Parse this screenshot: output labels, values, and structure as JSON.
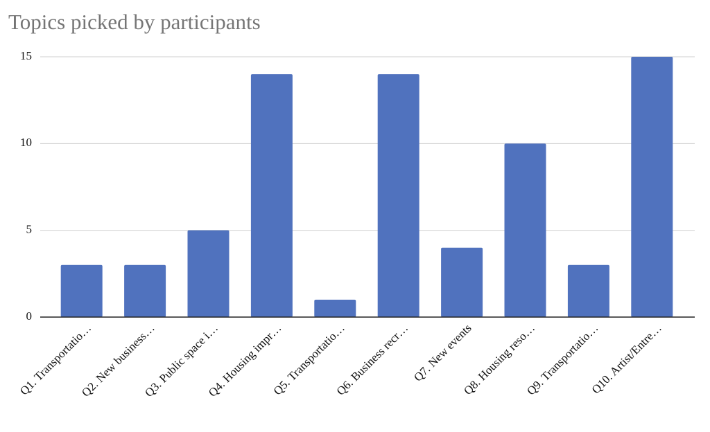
{
  "chart_data": {
    "type": "bar",
    "title": "Topics picked by participants",
    "categories": [
      "Q1. Transportatio…",
      "Q2. New business…",
      "Q3. Public space i…",
      "Q4. Housing impr…",
      "Q5. Transportatio…",
      "Q6. Business recr…",
      "Q7. New events",
      "Q8. Housing reso…",
      "Q9. Transportatio…",
      "Q10. Artist/Entre…"
    ],
    "values": [
      3,
      3,
      5,
      14,
      1,
      14,
      4,
      10,
      3,
      15
    ],
    "color": "#5072be",
    "ylim": [
      0,
      15
    ],
    "yticks": [
      0,
      5,
      10,
      15
    ],
    "grid": true
  }
}
